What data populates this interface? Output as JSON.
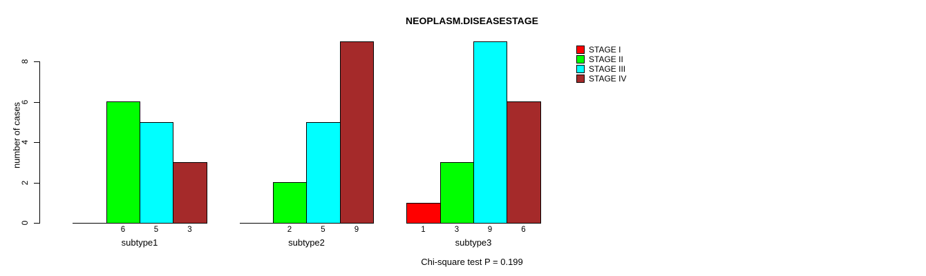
{
  "page": {
    "background": "#ffffff",
    "text_color": "#000000"
  },
  "chart_data": {
    "type": "bar",
    "title": "NEOPLASM.DISEASESTAGE",
    "xlabel": "",
    "ylabel": "number of cases",
    "categories": [
      "subtype1",
      "subtype2",
      "subtype3"
    ],
    "series": [
      {
        "name": "STAGE I",
        "color": "#ff0000",
        "values": [
          0,
          0,
          1
        ]
      },
      {
        "name": "STAGE II",
        "color": "#00ff00",
        "values": [
          6,
          2,
          3
        ]
      },
      {
        "name": "STAGE III",
        "color": "#00ffff",
        "values": [
          5,
          5,
          9
        ]
      },
      {
        "name": "STAGE IV",
        "color": "#a52a2a",
        "values": [
          3,
          9,
          6
        ]
      }
    ],
    "ylim": [
      0,
      9
    ],
    "yticks": [
      0,
      2,
      4,
      6,
      8
    ],
    "grid": false,
    "bar_value_labels": "shown under each nonzero bar",
    "legend_position": "top-right",
    "annotation": "Chi-square test P = 0.199",
    "axis_color": "#000000"
  }
}
